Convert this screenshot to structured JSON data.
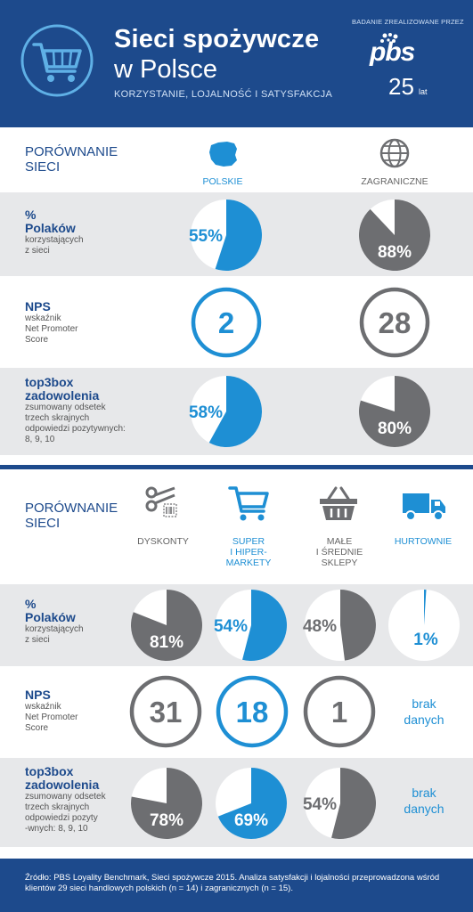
{
  "header": {
    "title_line1": "Sieci spożywcze",
    "title_line2": "w Polsce",
    "subtitle": "KORZYSTANIE, LOJALNOŚĆ I SATYSFAKCJA",
    "research_note": "BADANIE ZREALIZOWANE PRZEZ",
    "logo_word": "pbs",
    "logo_years": "25",
    "logo_lat": "lat",
    "icon": "shopping-cart-icon"
  },
  "section1": {
    "title_line1": "PORÓWNANIE",
    "title_line2": "SIECI",
    "columns": [
      {
        "label": "POLSKIE",
        "icon": "poland-map-icon",
        "color": "#1e8fd4"
      },
      {
        "label": "ZAGRANICZNE",
        "icon": "globe-icon",
        "color": "#6d6e71"
      }
    ],
    "rows": [
      {
        "main_1": "%",
        "main_2": "Polaków",
        "sub": [
          "korzystających",
          "z sieci"
        ]
      },
      {
        "main_1": "NPS",
        "main_2": "",
        "sub": [
          "wskaźnik",
          "Net Promoter",
          "Score"
        ]
      },
      {
        "main_1": "top3box",
        "main_2": "zadowolenia",
        "sub": [
          "zsumowany odsetek",
          "trzech skrajnych",
          "odpowiedzi pozytywnych:",
          "8, 9, 10"
        ]
      }
    ]
  },
  "section2": {
    "title_line1": "PORÓWNANIE",
    "title_line2": "SIECI",
    "columns": [
      {
        "label": [
          "DYSKONTY"
        ],
        "icon": "scissors-barcode-icon",
        "color": "#6d6e71"
      },
      {
        "label": [
          "SUPER",
          "I HIPER-",
          "MARKETY"
        ],
        "icon": "shopping-cart-icon",
        "color": "#1e8fd4"
      },
      {
        "label": [
          "MAŁE",
          "I ŚREDNIE",
          "SKLEPY"
        ],
        "icon": "basket-icon",
        "color": "#6d6e71"
      },
      {
        "label": [
          "HURTOWNIE"
        ],
        "icon": "truck-icon",
        "color": "#1e8fd4"
      }
    ],
    "rows": [
      {
        "main_1": "%",
        "main_2": "Polaków",
        "sub": [
          "korzystających",
          "z sieci"
        ]
      },
      {
        "main_1": "NPS",
        "main_2": "",
        "sub": [
          "wskaźnik",
          "Net Promoter",
          "Score"
        ]
      },
      {
        "main_1": "top3box",
        "main_2": "zadowolenia",
        "sub": [
          "zsumowany odsetek",
          "trzech skrajnych",
          "odpowiedzi pozyty",
          "-wnych: 8, 9, 10"
        ]
      }
    ],
    "no_data": [
      "brak",
      "danych"
    ]
  },
  "footer": {
    "text": "Źródło: PBS Loyality Benchmark, Sieci spożywcze 2015. Analiza satysfakcji i lojalności przeprowadzona wśród klientów 29 sieci handlowych polskich (n = 14) i zagranicznych (n = 15)."
  },
  "chart_data": [
    {
      "type": "pie",
      "title": "% Polaków korzystających z sieci",
      "categories": [
        "POLSKIE",
        "ZAGRANICZNE"
      ],
      "values": [
        55,
        88
      ],
      "labels": [
        "55%",
        "88%"
      ],
      "colors": [
        "#1e8fd4",
        "#6d6e71"
      ]
    },
    {
      "type": "table",
      "title": "NPS",
      "categories": [
        "POLSKIE",
        "ZAGRANICZNE"
      ],
      "values": [
        2,
        28
      ],
      "labels": [
        "2",
        "28"
      ]
    },
    {
      "type": "pie",
      "title": "top3box zadowolenia",
      "categories": [
        "POLSKIE",
        "ZAGRANICZNE"
      ],
      "values": [
        58,
        80
      ],
      "labels": [
        "58%",
        "80%"
      ],
      "colors": [
        "#1e8fd4",
        "#6d6e71"
      ]
    },
    {
      "type": "pie",
      "title": "% Polaków korzystających z sieci",
      "categories": [
        "DYSKONTY",
        "SUPER I HIPER-MARKETY",
        "MAŁE I ŚREDNIE SKLEPY",
        "HURTOWNIE"
      ],
      "values": [
        81,
        54,
        48,
        1
      ],
      "labels": [
        "81%",
        "54%",
        "48%",
        "1%"
      ],
      "colors": [
        "#6d6e71",
        "#1e8fd4",
        "#6d6e71",
        "#1e8fd4"
      ]
    },
    {
      "type": "table",
      "title": "NPS",
      "categories": [
        "DYSKONTY",
        "SUPER I HIPER-MARKETY",
        "MAŁE I ŚREDNIE SKLEPY",
        "HURTOWNIE"
      ],
      "values": [
        31,
        18,
        1,
        null
      ],
      "labels": [
        "31",
        "18",
        "1",
        "brak danych"
      ]
    },
    {
      "type": "pie",
      "title": "top3box zadowolenia",
      "categories": [
        "DYSKONTY",
        "SUPER I HIPER-MARKETY",
        "MAŁE I ŚREDNIE SKLEPY",
        "HURTOWNIE"
      ],
      "values": [
        78,
        69,
        54,
        null
      ],
      "labels": [
        "78%",
        "69%",
        "54%",
        "brak danych"
      ],
      "colors": [
        "#6d6e71",
        "#1e8fd4",
        "#6d6e71",
        "#1e8fd4"
      ]
    }
  ]
}
